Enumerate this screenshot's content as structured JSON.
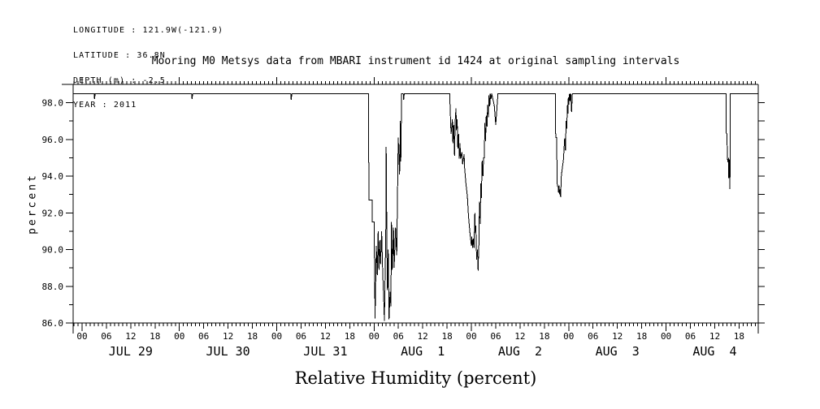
{
  "header": {
    "meta_lines": [
      "LONGITUDE : 121.9W(-121.9)",
      "LATITUDE : 36.8N",
      "DEPTH (m) : -2.5",
      "YEAR : 2011"
    ],
    "title": "Mooring M0 Metsys data from MBARI instrument id 1424 at original sampling intervals"
  },
  "axes": {
    "y_axis_label": "percent",
    "y_tick_labels": [
      "86.0",
      "88.0",
      "90.0",
      "92.0",
      "94.0",
      "96.0",
      "98.0"
    ],
    "hour_tick_labels": [
      "00",
      "06",
      "12",
      "18"
    ],
    "day_labels": [
      "JUL 29",
      "JUL 30",
      "JUL 31",
      "AUG  1",
      "AUG  2",
      "AUG  3",
      "AUG  4"
    ]
  },
  "caption": "Relative Humidity (percent)",
  "chart_data": {
    "type": "line",
    "title": "Mooring M0 Metsys data from MBARI instrument id 1424 at original sampling intervals",
    "xlabel": "Relative Humidity (percent)",
    "ylabel": "percent",
    "ylim": [
      86,
      99
    ],
    "y_major_ticks": [
      86,
      88,
      90,
      92,
      94,
      96,
      98
    ],
    "y_minor_step": 1,
    "x_range_hours": [
      -2.2,
      166.73
    ],
    "x_units": "hours since JUL 29 2011 00:00",
    "day_start_hours": [
      0,
      24,
      48,
      72,
      96,
      120,
      144
    ],
    "hour_label_step": 6,
    "grid": false,
    "line_color": "#000000",
    "axis_color": "#000000",
    "background_color": "#ffffff",
    "series": [
      {
        "name": "relative_humidity_percent",
        "points": [
          [
            -2.2,
            98.5
          ],
          [
            3.0,
            98.5
          ],
          [
            3.07,
            98.2
          ],
          [
            3.25,
            98.5
          ],
          [
            27.0,
            98.5
          ],
          [
            27.11,
            98.2
          ],
          [
            27.3,
            98.5
          ],
          [
            51.45,
            98.5
          ],
          [
            51.56,
            98.15
          ],
          [
            51.75,
            98.5
          ],
          [
            70.6,
            98.5
          ],
          [
            70.75,
            92.7
          ],
          [
            71.55,
            92.7
          ],
          [
            71.55,
            91.5
          ],
          [
            72.0,
            91.5
          ],
          [
            72.24,
            86.25
          ],
          [
            72.55,
            90.2
          ],
          [
            72.8,
            88.6
          ],
          [
            73.0,
            91.0
          ],
          [
            73.2,
            88.9
          ],
          [
            73.4,
            90.5
          ],
          [
            73.6,
            89.2
          ],
          [
            73.87,
            91.0
          ],
          [
            74.15,
            88.6
          ],
          [
            74.35,
            87.5
          ],
          [
            74.55,
            86.1
          ],
          [
            74.75,
            89.0
          ],
          [
            74.89,
            90.5
          ],
          [
            75.0,
            95.6
          ],
          [
            75.15,
            90.5
          ],
          [
            75.3,
            87.8
          ],
          [
            75.5,
            90.0
          ],
          [
            75.7,
            86.2
          ],
          [
            75.95,
            87.7
          ],
          [
            76.15,
            86.9
          ],
          [
            76.3,
            91.5
          ],
          [
            76.5,
            88.9
          ],
          [
            76.8,
            91.2
          ],
          [
            76.95,
            89.0
          ],
          [
            77.3,
            91.2
          ],
          [
            77.6,
            89.7
          ],
          [
            77.95,
            96.1
          ],
          [
            78.3,
            94.1
          ],
          [
            78.5,
            97.0
          ],
          [
            78.6,
            94.8
          ],
          [
            78.8,
            98.5
          ],
          [
            79.2,
            98.5
          ],
          [
            79.3,
            98.15
          ],
          [
            79.45,
            98.5
          ],
          [
            90.64,
            98.5
          ],
          [
            90.98,
            96.3
          ],
          [
            91.32,
            97.1
          ],
          [
            91.45,
            95.8
          ],
          [
            91.65,
            96.8
          ],
          [
            91.85,
            95.1
          ],
          [
            92.0,
            97.0
          ],
          [
            92.2,
            97.7
          ],
          [
            92.3,
            96.5
          ],
          [
            92.5,
            97.1
          ],
          [
            92.65,
            95.5
          ],
          [
            92.85,
            96.3
          ],
          [
            93.0,
            94.95
          ],
          [
            93.2,
            95.8
          ],
          [
            93.3,
            94.95
          ],
          [
            93.65,
            95.3
          ],
          [
            93.85,
            94.65
          ],
          [
            94.2,
            95.2
          ],
          [
            94.3,
            94.5
          ],
          [
            94.65,
            93.6
          ],
          [
            95.0,
            92.9
          ],
          [
            95.3,
            91.8
          ],
          [
            95.65,
            90.9
          ],
          [
            96.0,
            90.2
          ],
          [
            96.1,
            90.7
          ],
          [
            96.3,
            90.1
          ],
          [
            96.45,
            90.6
          ],
          [
            96.65,
            90.1
          ],
          [
            96.85,
            92.0
          ],
          [
            97.0,
            90.9
          ],
          [
            97.1,
            91.3
          ],
          [
            97.3,
            89.45
          ],
          [
            97.5,
            90.0
          ],
          [
            97.66,
            88.85
          ],
          [
            97.85,
            90.3
          ],
          [
            98.0,
            92.6
          ],
          [
            98.2,
            91.4
          ],
          [
            98.3,
            93.6
          ],
          [
            98.45,
            92.8
          ],
          [
            98.65,
            94.85
          ],
          [
            98.85,
            94.0
          ],
          [
            99.0,
            95.0
          ],
          [
            99.2,
            95.0
          ],
          [
            99.3,
            96.9
          ],
          [
            99.5,
            95.9
          ],
          [
            99.65,
            97.3
          ],
          [
            99.85,
            96.7
          ],
          [
            100.0,
            97.9
          ],
          [
            100.2,
            97.2
          ],
          [
            100.3,
            98.4
          ],
          [
            100.55,
            97.8
          ],
          [
            100.65,
            98.5
          ],
          [
            100.85,
            98.2
          ],
          [
            101.0,
            98.5
          ],
          [
            101.65,
            97.85
          ],
          [
            102.0,
            96.8
          ],
          [
            102.2,
            97.4
          ],
          [
            102.55,
            98.5
          ],
          [
            116.7,
            98.5
          ],
          [
            116.8,
            96.1
          ],
          [
            117.0,
            96.1
          ],
          [
            117.2,
            93.45
          ],
          [
            117.4,
            93.4
          ],
          [
            117.5,
            93.1
          ],
          [
            117.6,
            93.5
          ],
          [
            117.8,
            93.0
          ],
          [
            117.9,
            93.3
          ],
          [
            118.0,
            92.85
          ],
          [
            118.2,
            94.05
          ],
          [
            118.4,
            94.4
          ],
          [
            118.7,
            94.9
          ],
          [
            119.0,
            96.05
          ],
          [
            119.2,
            95.4
          ],
          [
            119.35,
            97.0
          ],
          [
            119.5,
            96.6
          ],
          [
            119.7,
            97.9
          ],
          [
            119.8,
            97.4
          ],
          [
            119.9,
            98.3
          ],
          [
            120.04,
            97.9
          ],
          [
            120.2,
            98.5
          ],
          [
            120.4,
            98.1
          ],
          [
            120.5,
            98.5
          ],
          [
            120.7,
            97.5
          ],
          [
            120.9,
            98.5
          ],
          [
            158.8,
            98.5
          ],
          [
            158.85,
            96.35
          ],
          [
            159.0,
            96.3
          ],
          [
            159.15,
            94.9
          ],
          [
            159.3,
            94.75
          ],
          [
            159.4,
            95.0
          ],
          [
            159.45,
            93.9
          ],
          [
            159.6,
            94.9
          ],
          [
            159.65,
            93.9
          ],
          [
            159.7,
            94.5
          ],
          [
            159.75,
            93.3
          ],
          [
            159.85,
            98.5
          ],
          [
            166.73,
            98.5
          ]
        ]
      }
    ]
  }
}
